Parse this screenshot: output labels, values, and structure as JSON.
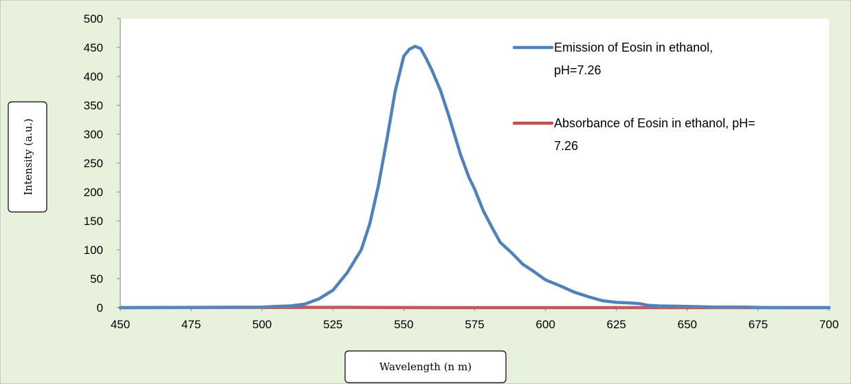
{
  "chart_data": {
    "type": "line",
    "xlabel": "Wavelength (n m)",
    "ylabel": "Intensity (a.u.)",
    "xlim": [
      450,
      700
    ],
    "ylim": [
      0,
      500
    ],
    "x_ticks": [
      "450",
      "475",
      "500",
      "525",
      "550",
      "575",
      "600",
      "625",
      "650",
      "675",
      "700"
    ],
    "y_ticks": [
      "0",
      "50",
      "100",
      "150",
      "200",
      "250",
      "300",
      "350",
      "400",
      "450",
      "500"
    ],
    "grid": false,
    "legend_position": "top-right",
    "series": [
      {
        "name": "Emission of Eosin in ethanol, pH=7.26",
        "legend_lines": [
          "Emission of Eosin in ethanol,",
          "pH=7.26"
        ],
        "color": "#4f81bd",
        "x": [
          450,
          500,
          505,
          510,
          515,
          520,
          525,
          530,
          535,
          538,
          541,
          544,
          547,
          550,
          552,
          554,
          556,
          558,
          560,
          563,
          566,
          570,
          573,
          575,
          578,
          581,
          584,
          588,
          592,
          596,
          600,
          605,
          610,
          615,
          620,
          625,
          630,
          633,
          636,
          640,
          650,
          660,
          670,
          680,
          690,
          700
        ],
        "y": [
          0,
          1,
          2,
          3,
          6,
          15,
          30,
          60,
          100,
          145,
          210,
          290,
          375,
          435,
          447,
          452,
          448,
          430,
          410,
          375,
          330,
          265,
          225,
          205,
          168,
          140,
          113,
          95,
          75,
          62,
          48,
          38,
          27,
          19,
          12,
          9,
          8,
          7,
          4,
          3,
          2,
          1,
          1,
          0,
          0,
          0
        ]
      },
      {
        "name": "Absorbance of Eosin in ethanol, pH= 7.26",
        "legend_lines": [
          "Absorbance of Eosin in ethanol, pH=",
          "7.26"
        ],
        "color": "#c0504d",
        "x": [
          450,
          500,
          525,
          535,
          550,
          575,
          600,
          650,
          700
        ],
        "y": [
          0,
          0.2,
          0.5,
          0.3,
          0.1,
          0,
          0,
          0,
          0
        ]
      }
    ]
  }
}
